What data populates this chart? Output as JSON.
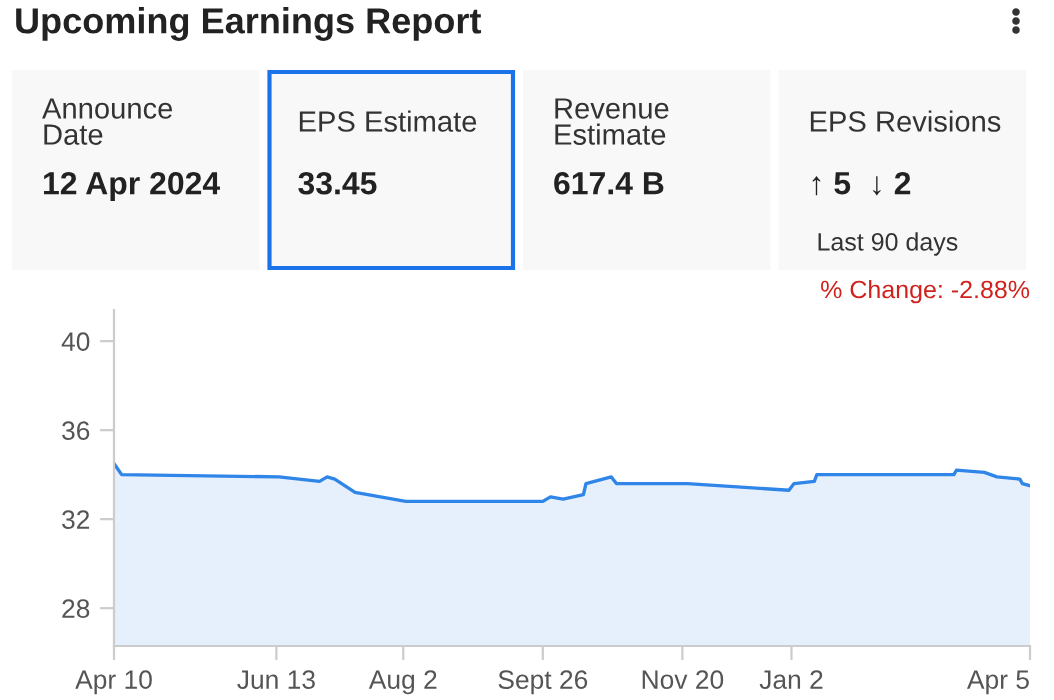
{
  "chart_data": [
    {
      "type": "other",
      "title": "Upcoming Earnings Report",
      "categories": [
        "Announce Date",
        "EPS Estimate",
        "Revenue Estimate",
        "EPS Revisions"
      ],
      "value_labels": [
        "12 Apr 2024",
        "33.45",
        "617.4 B",
        "↑ 5  ↓ 2"
      ],
      "colors": [
        "#f8f8f8",
        "#1a73e8",
        "#f8f8f8",
        "#f8f8f8"
      ],
      "annotations": [
        "Last 90 days"
      ]
    },
    {
      "type": "area",
      "x": [
        "2023-04-10",
        "2023-04-13",
        "2023-06-14",
        "2023-06-30",
        "2023-07-03",
        "2023-07-06",
        "2023-07-14",
        "2023-08-03",
        "2023-09-26",
        "2023-09-29",
        "2023-10-04",
        "2023-10-12",
        "2023-10-13",
        "2023-10-23",
        "2023-10-25",
        "2023-11-22",
        "2024-01-01",
        "2024-01-03",
        "2024-01-11",
        "2024-01-12",
        "2024-03-06",
        "2024-03-07",
        "2024-03-18",
        "2024-03-23",
        "2024-04-01",
        "2024-04-02",
        "2024-04-05"
      ],
      "series": [
        {
          "color": "#2f86e8",
          "values": [
            34.5,
            34.0,
            33.9,
            33.7,
            33.9,
            33.8,
            33.2,
            32.8,
            32.8,
            33.0,
            32.9,
            33.1,
            33.6,
            33.9,
            33.6,
            33.6,
            33.3,
            33.6,
            33.7,
            34.0,
            34.0,
            34.2,
            34.1,
            33.9,
            33.8,
            33.6,
            33.5
          ]
        }
      ],
      "xlim": [
        "2023-04-10",
        "2024-04-05"
      ],
      "xticks": [
        {
          "value": "2023-04-10",
          "label": "Apr 10"
        },
        {
          "value": "2023-06-13",
          "label": "Jun 13"
        },
        {
          "value": "2023-08-02",
          "label": "Aug 2"
        },
        {
          "value": "2023-09-26",
          "label": "Sept 26"
        },
        {
          "value": "2023-11-20",
          "label": "Nov 20"
        },
        {
          "value": "2024-01-02",
          "label": "Jan 2"
        },
        {
          "value": "2024-04-05",
          "label": "Apr 5"
        }
      ],
      "ylim": [
        26.3,
        41.4
      ],
      "yticks": [
        28,
        32,
        36,
        40
      ],
      "grid": false,
      "annotations": [
        "% Change: -2.88%"
      ]
    }
  ]
}
